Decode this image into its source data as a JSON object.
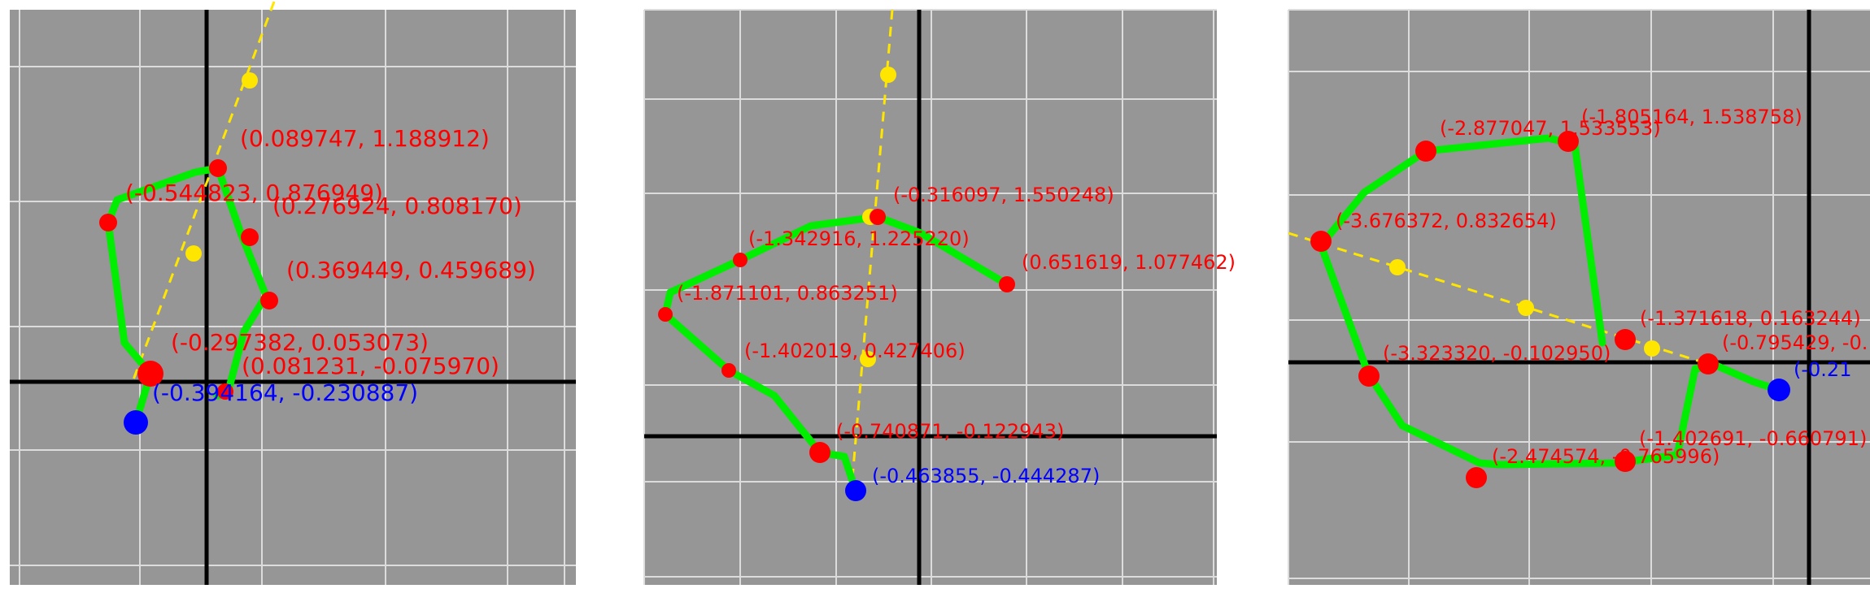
{
  "colors": {
    "background": "#969696",
    "grid": "#dcdcdc",
    "axis": "#000000",
    "path": "#00ee00",
    "vertex": "#ff0000",
    "start": "#0000ff",
    "guide": "#ffe600"
  },
  "panels": [
    {
      "vertices": [
        {
          "label": "(0.089747, 1.188912)",
          "role": "vertex"
        },
        {
          "label": "(-0.544823, 0.876949)",
          "role": "vertex"
        },
        {
          "label": "(0.276924, 0.808170)",
          "role": "vertex"
        },
        {
          "label": "(0.369449, 0.459689)",
          "role": "vertex"
        },
        {
          "label": "(-0.297382, 0.053073)",
          "role": "vertex"
        },
        {
          "label": "(0.081231, -0.075970)",
          "role": "vertex"
        },
        {
          "label": "(-0.394164, -0.230887)",
          "role": "start"
        }
      ]
    },
    {
      "vertices": [
        {
          "label": "(-0.316097, 1.550248)",
          "role": "vertex"
        },
        {
          "label": "(0.651619, 1.077462)",
          "role": "vertex"
        },
        {
          "label": "(-1.342916, 1.225220)",
          "role": "vertex"
        },
        {
          "label": "(-1.871101, 0.863251)",
          "role": "vertex"
        },
        {
          "label": "(-1.402019, 0.427406)",
          "role": "vertex"
        },
        {
          "label": "(-0.740871, -0.122943)",
          "role": "vertex"
        },
        {
          "label": "(-0.463855, -0.444287)",
          "role": "start"
        }
      ]
    },
    {
      "vertices": [
        {
          "label": "(-2.877047, 1.533553)",
          "role": "vertex"
        },
        {
          "label": "(-1.805164, 1.538758)",
          "role": "vertex"
        },
        {
          "label": "(-3.676372, 0.832654)",
          "role": "vertex"
        },
        {
          "label": "(-1.371618, 0.163244)",
          "role": "vertex"
        },
        {
          "label": "(-0.795429, -0.",
          "role": "vertex"
        },
        {
          "label": "(-3.323320, -0.102950)",
          "role": "vertex"
        },
        {
          "label": "(-1.402691, -0.660791)",
          "role": "vertex"
        },
        {
          "label": "(-2.474574, -0.765996)",
          "role": "vertex"
        },
        {
          "label": "(-0.21",
          "role": "start"
        }
      ]
    }
  ]
}
